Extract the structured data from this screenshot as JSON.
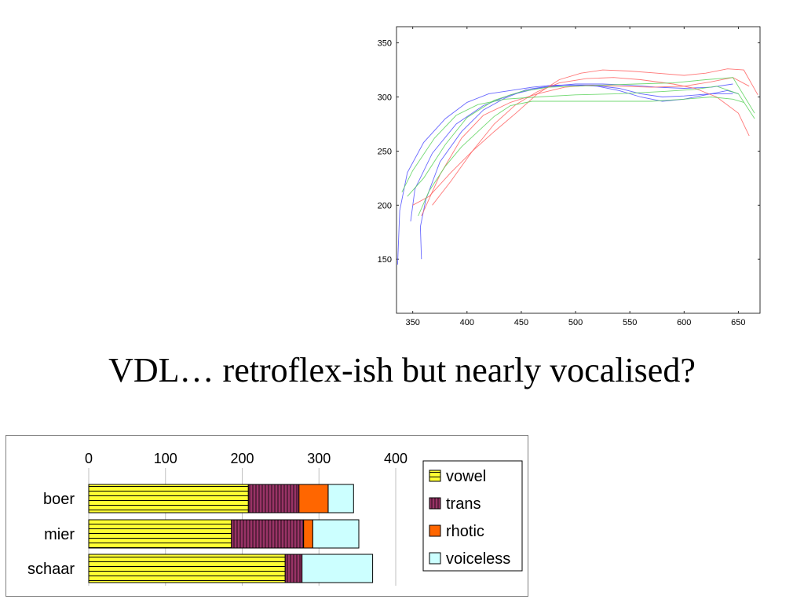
{
  "slide": {
    "caption": "VDL… retroflex-ish but nearly vocalised?"
  },
  "chart_data": [
    {
      "type": "line",
      "xlim": [
        335,
        670
      ],
      "ylim": [
        100,
        365
      ],
      "x_ticks": [
        350,
        400,
        450,
        500,
        550,
        600,
        650
      ],
      "y_ticks": [
        150,
        200,
        250,
        300,
        350
      ],
      "grid": false,
      "legend": "none",
      "series": [
        {
          "color": "#4d4dff",
          "points": [
            [
              336,
              145
            ],
            [
              338,
              195
            ],
            [
              345,
              230
            ],
            [
              360,
              258
            ],
            [
              380,
              280
            ],
            [
              400,
              295
            ],
            [
              420,
              303
            ],
            [
              440,
              306
            ],
            [
              460,
              309
            ],
            [
              480,
              311
            ],
            [
              500,
              311
            ],
            [
              520,
              310
            ],
            [
              540,
              306
            ],
            [
              560,
              300
            ],
            [
              580,
              296
            ],
            [
              600,
              298
            ],
            [
              620,
              302
            ],
            [
              640,
              306
            ],
            [
              650,
              303
            ]
          ]
        },
        {
          "color": "#4d4dff",
          "points": [
            [
              358,
              150
            ],
            [
              357,
              180
            ],
            [
              362,
              205
            ],
            [
              375,
              240
            ],
            [
              395,
              268
            ],
            [
              415,
              288
            ],
            [
              435,
              299
            ],
            [
              455,
              307
            ],
            [
              475,
              310
            ],
            [
              500,
              312
            ],
            [
              525,
              312
            ],
            [
              550,
              311
            ],
            [
              575,
              309
            ],
            [
              600,
              308
            ],
            [
              625,
              309
            ],
            [
              645,
              312
            ]
          ]
        },
        {
          "color": "#4d4dff",
          "points": [
            [
              348,
              185
            ],
            [
              352,
              215
            ],
            [
              368,
              248
            ],
            [
              390,
              275
            ],
            [
              415,
              292
            ],
            [
              440,
              302
            ],
            [
              465,
              308
            ],
            [
              490,
              311
            ],
            [
              515,
              311
            ],
            [
              540,
              308
            ],
            [
              560,
              303
            ],
            [
              580,
              300
            ],
            [
              600,
              301
            ],
            [
              625,
              303
            ],
            [
              645,
              303
            ]
          ]
        },
        {
          "color": "#ff6060",
          "points": [
            [
              350,
              200
            ],
            [
              365,
              208
            ],
            [
              385,
              230
            ],
            [
              405,
              250
            ],
            [
              425,
              268
            ],
            [
              445,
              285
            ],
            [
              465,
              303
            ],
            [
              485,
              316
            ],
            [
              505,
              322
            ],
            [
              525,
              325
            ],
            [
              550,
              324
            ],
            [
              575,
              322
            ],
            [
              600,
              320
            ],
            [
              620,
              322
            ],
            [
              640,
              326
            ],
            [
              655,
              325
            ],
            [
              668,
              302
            ]
          ]
        },
        {
          "color": "#ff6060",
          "points": [
            [
              368,
              200
            ],
            [
              385,
              222
            ],
            [
              405,
              250
            ],
            [
              425,
              275
            ],
            [
              445,
              293
            ],
            [
              465,
              305
            ],
            [
              485,
              313
            ],
            [
              510,
              317
            ],
            [
              535,
              318
            ],
            [
              560,
              316
            ],
            [
              590,
              312
            ],
            [
              610,
              308
            ],
            [
              630,
              300
            ],
            [
              650,
              285
            ],
            [
              660,
              264
            ]
          ]
        },
        {
          "color": "#ff6060",
          "points": [
            [
              358,
              190
            ],
            [
              375,
              228
            ],
            [
              395,
              262
            ],
            [
              415,
              283
            ],
            [
              440,
              295
            ],
            [
              465,
              303
            ],
            [
              490,
              309
            ],
            [
              515,
              311
            ],
            [
              540,
              310
            ],
            [
              570,
              309
            ],
            [
              600,
              310
            ],
            [
              625,
              314
            ],
            [
              645,
              318
            ],
            [
              660,
              310
            ]
          ]
        },
        {
          "color": "#5ad25a",
          "points": [
            [
              355,
              190
            ],
            [
              365,
              213
            ],
            [
              380,
              236
            ],
            [
              395,
              254
            ],
            [
              410,
              268
            ],
            [
              425,
              282
            ],
            [
              440,
              292
            ],
            [
              460,
              296
            ],
            [
              480,
              296
            ],
            [
              510,
              296
            ],
            [
              540,
              296
            ],
            [
              570,
              296
            ],
            [
              600,
              298
            ],
            [
              625,
              300
            ],
            [
              645,
              298
            ],
            [
              655,
              295
            ]
          ]
        },
        {
          "color": "#5ad25a",
          "points": [
            [
              345,
              208
            ],
            [
              360,
              225
            ],
            [
              380,
              256
            ],
            [
              400,
              281
            ],
            [
              425,
              297
            ],
            [
              450,
              305
            ],
            [
              475,
              309
            ],
            [
              500,
              310
            ],
            [
              525,
              311
            ],
            [
              555,
              312
            ],
            [
              590,
              313
            ],
            [
              620,
              316
            ],
            [
              645,
              318
            ],
            [
              665,
              285
            ]
          ]
        },
        {
          "color": "#5ad25a",
          "points": [
            [
              340,
              212
            ],
            [
              350,
              232
            ],
            [
              370,
              262
            ],
            [
              390,
              283
            ],
            [
              410,
              293
            ],
            [
              435,
              298
            ],
            [
              465,
              300
            ],
            [
              500,
              302
            ],
            [
              540,
              303
            ],
            [
              580,
              305
            ],
            [
              610,
              307
            ],
            [
              630,
              310
            ],
            [
              650,
              303
            ],
            [
              665,
              280
            ]
          ]
        }
      ]
    },
    {
      "type": "bar",
      "orientation": "horizontal",
      "stacked": true,
      "categories": [
        "boer",
        "mier",
        "schaar"
      ],
      "xlim": [
        0,
        400
      ],
      "x_ticks": [
        0,
        100,
        200,
        300,
        400
      ],
      "legend": "right",
      "series": [
        {
          "name": "vowel",
          "color": "#ffff33",
          "pattern": "horizontal-lines",
          "values": [
            208,
            186,
            256
          ]
        },
        {
          "name": "trans",
          "color": "#993366",
          "pattern": "vertical-lines",
          "values": [
            66,
            94,
            22
          ]
        },
        {
          "name": "rhotic",
          "color": "#ff6600",
          "pattern": "solid",
          "values": [
            38,
            12,
            0
          ]
        },
        {
          "name": "voiceless",
          "color": "#ccffff",
          "pattern": "solid",
          "values": [
            33,
            60,
            92
          ]
        }
      ]
    }
  ]
}
